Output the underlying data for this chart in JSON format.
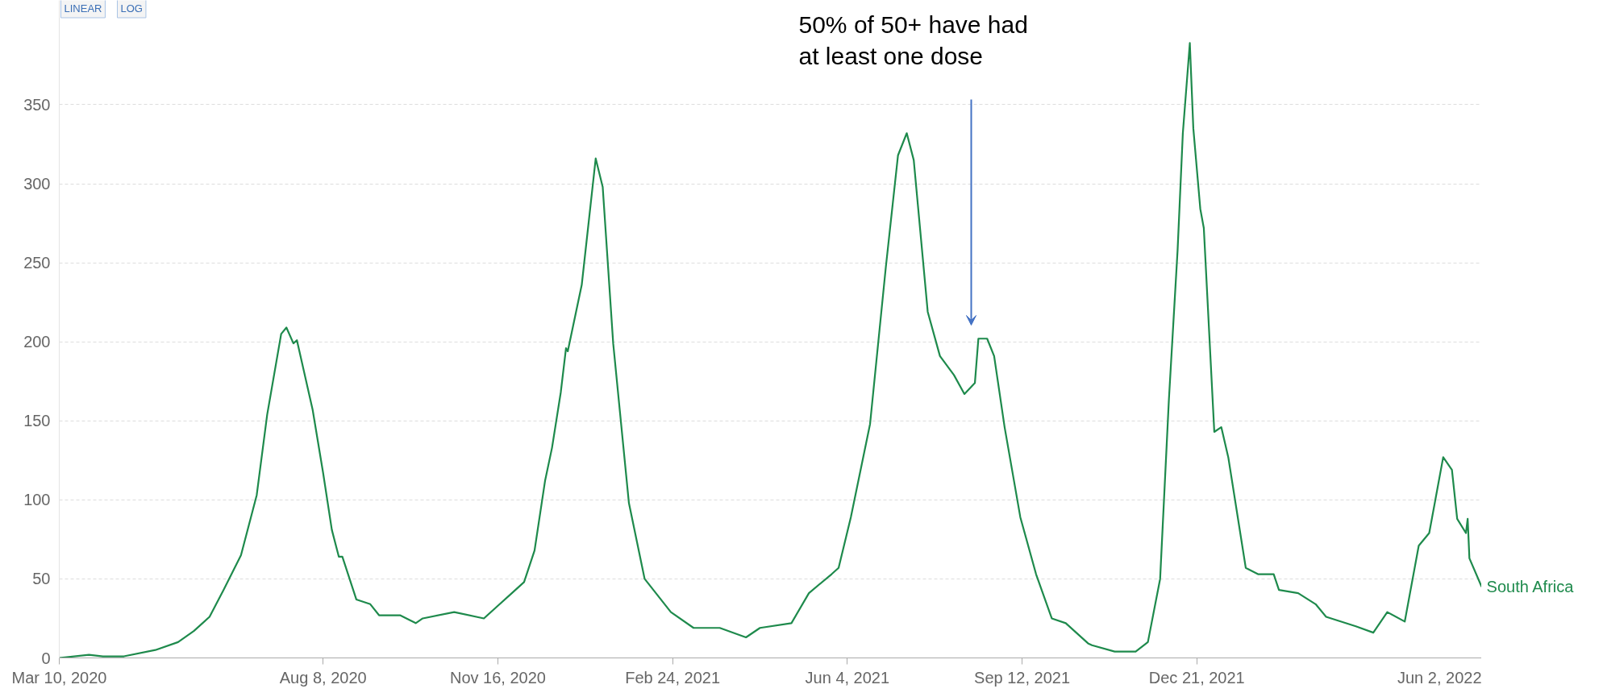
{
  "chart_data": {
    "type": "line",
    "annotations": [
      "50% of 50+ have had\nat least one dose",
      "LINEAR",
      "LOG"
    ],
    "x": [
      "2020-03-10",
      "2020-03-27",
      "2020-04-04",
      "2020-04-16",
      "2020-05-04",
      "2020-05-17",
      "2020-05-26",
      "2020-06-04",
      "2020-06-12",
      "2020-06-22",
      "2020-07-01",
      "2020-07-07",
      "2020-07-15",
      "2020-07-18",
      "2020-07-22",
      "2020-07-24",
      "2020-08-02",
      "2020-08-08",
      "2020-08-13",
      "2020-08-17",
      "2020-08-19",
      "2020-08-27",
      "2020-09-04",
      "2020-09-09",
      "2020-09-21",
      "2020-09-30",
      "2020-10-04",
      "2020-10-22",
      "2020-11-08",
      "2020-11-15",
      "2020-11-24",
      "2020-12-01",
      "2020-12-07",
      "2020-12-13",
      "2020-12-17",
      "2020-12-22",
      "2020-12-25",
      "2020-12-26",
      "2021-01-03",
      "2021-01-11",
      "2021-01-15",
      "2021-01-21",
      "2021-01-30",
      "2021-02-08",
      "2021-02-23",
      "2021-03-08",
      "2021-03-23",
      "2021-04-07",
      "2021-04-15",
      "2021-05-03",
      "2021-05-13",
      "2021-05-26",
      "2021-05-30",
      "2021-06-06",
      "2021-06-17",
      "2021-06-26",
      "2021-07-03",
      "2021-07-08",
      "2021-07-12",
      "2021-07-20",
      "2021-07-27",
      "2021-08-04",
      "2021-08-10",
      "2021-08-16",
      "2021-08-18",
      "2021-08-23",
      "2021-08-27",
      "2021-09-02",
      "2021-09-11",
      "2021-09-20",
      "2021-09-29",
      "2021-10-07",
      "2021-10-20",
      "2021-10-22",
      "2021-11-04",
      "2021-11-16",
      "2021-11-23",
      "2021-11-30",
      "2021-12-05",
      "2021-12-10",
      "2021-12-13",
      "2021-12-17",
      "2021-12-19",
      "2021-12-23",
      "2021-12-25",
      "2021-12-31",
      "2022-01-04",
      "2022-01-08",
      "2022-01-14",
      "2022-01-18",
      "2022-01-25",
      "2022-02-03",
      "2022-02-06",
      "2022-02-17",
      "2022-02-27",
      "2022-03-05",
      "2022-03-22",
      "2022-04-01",
      "2022-04-09",
      "2022-04-19",
      "2022-04-27",
      "2022-05-03",
      "2022-05-11",
      "2022-05-16",
      "2022-05-19",
      "2022-05-24",
      "2022-05-25",
      "2022-05-26",
      "2022-06-02"
    ],
    "series": [
      {
        "name": "South Africa",
        "color": "#1e8a4c",
        "values": [
          0,
          2,
          1,
          1,
          5,
          10,
          17,
          26,
          43,
          65,
          103,
          154,
          205,
          209,
          199,
          201,
          157,
          117,
          81,
          64,
          64,
          37,
          34,
          27,
          27,
          22,
          25,
          29,
          25,
          32,
          41,
          48,
          68,
          112,
          133,
          168,
          196,
          194,
          236,
          316,
          298,
          199,
          98,
          50,
          29,
          19,
          19,
          13,
          19,
          22,
          41,
          53,
          57,
          89,
          148,
          247,
          318,
          332,
          315,
          219,
          191,
          179,
          167,
          174,
          202,
          202,
          191,
          146,
          89,
          53,
          25,
          22,
          9,
          8,
          4,
          4,
          10,
          50,
          163,
          258,
          332,
          389,
          335,
          284,
          272,
          143,
          146,
          127,
          85,
          57,
          53,
          53,
          43,
          41,
          34,
          26,
          20,
          16,
          29,
          23,
          71,
          79,
          127,
          119,
          88,
          79,
          88,
          63,
          45
        ]
      }
    ],
    "xlim": [
      "2020-03-10",
      "2022-06-02"
    ],
    "xticks": [
      {
        "value": "2020-03-10",
        "label": "Mar 10, 2020"
      },
      {
        "value": "2020-08-08",
        "label": "Aug 8, 2020"
      },
      {
        "value": "2020-11-16",
        "label": "Nov 16, 2020"
      },
      {
        "value": "2021-02-24",
        "label": "Feb 24, 2021"
      },
      {
        "value": "2021-06-04",
        "label": "Jun 4, 2021"
      },
      {
        "value": "2021-09-12",
        "label": "Sep 12, 2021"
      },
      {
        "value": "2021-12-21",
        "label": "Dec 21, 2021"
      },
      {
        "value": "2022-06-02",
        "label": "Jun 2, 2022"
      }
    ],
    "ylim": [
      0,
      416
    ],
    "yticks": [
      0,
      50,
      100,
      150,
      200,
      250,
      300,
      350
    ],
    "grid": "y",
    "line_style": "solid",
    "marker": "none"
  }
}
